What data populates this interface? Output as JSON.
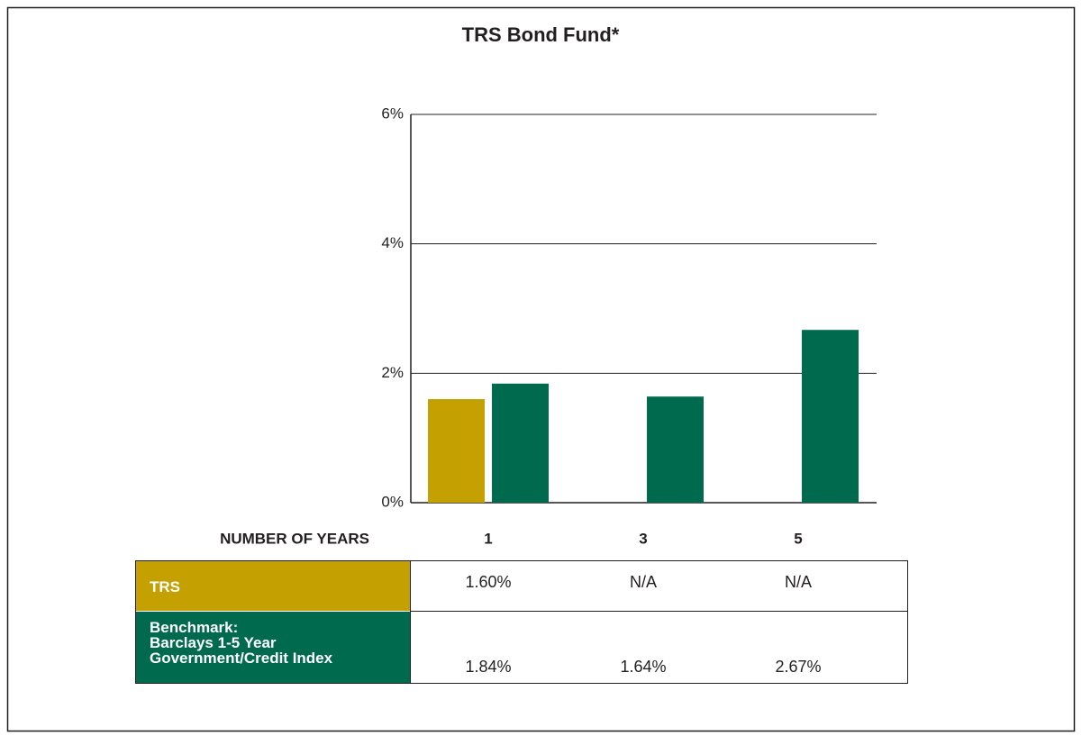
{
  "chart_data": {
    "type": "bar",
    "title": "TRS Bond Fund*",
    "x_label": "NUMBER OF YEARS",
    "categories": [
      "1",
      "3",
      "5"
    ],
    "series": [
      {
        "name": "TRS",
        "color": "#c4a000",
        "values": [
          1.6,
          null,
          null
        ],
        "value_labels": [
          "1.60%",
          "N/A",
          "N/A"
        ]
      },
      {
        "name": "Benchmark:\nBarclays 1-5 Year\nGovernment/Credit Index",
        "color": "#006a4e",
        "values": [
          1.84,
          1.64,
          2.67
        ],
        "value_labels": [
          "1.84%",
          "1.64%",
          "2.67%"
        ]
      }
    ],
    "ylim": [
      0,
      6
    ],
    "yticks": [
      {
        "value": 0,
        "label": "0%"
      },
      {
        "value": 2,
        "label": "2%"
      },
      {
        "value": 4,
        "label": "4%"
      },
      {
        "value": 6,
        "label": "6%"
      }
    ],
    "grid": true
  }
}
